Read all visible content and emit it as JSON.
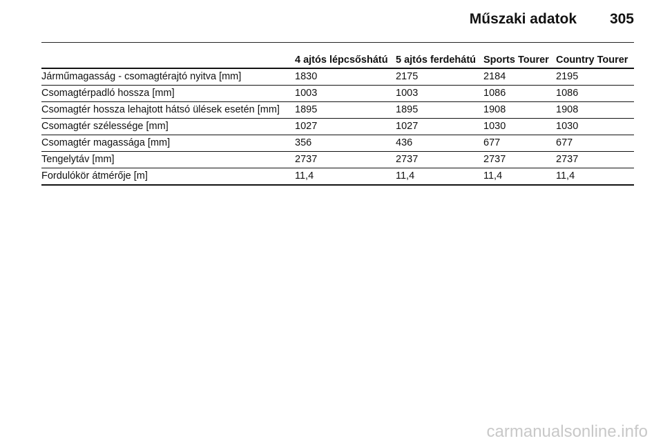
{
  "header": {
    "title": "Műszaki adatok",
    "page": "305"
  },
  "table": {
    "columns": [
      "4 ajtós lépcsőshátú",
      "5 ajtós ferdehátú",
      "Sports Tourer",
      "Country Tourer"
    ],
    "rows": [
      {
        "label": "Járműmagasság - csomagtérajtó nyitva [mm]",
        "values": [
          "1830",
          "2175",
          "2184",
          "2195"
        ]
      },
      {
        "label": "Csomagtérpadló hossza [mm]",
        "values": [
          "1003",
          "1003",
          "1086",
          "1086"
        ]
      },
      {
        "label": "Csomagtér hossza lehajtott hátsó ülések esetén [mm]",
        "values": [
          "1895",
          "1895",
          "1908",
          "1908"
        ]
      },
      {
        "label": "Csomagtér szélessége [mm]",
        "values": [
          "1027",
          "1027",
          "1030",
          "1030"
        ]
      },
      {
        "label": "Csomagtér magassága [mm]",
        "values": [
          "356",
          "436",
          "677",
          "677"
        ]
      },
      {
        "label": "Tengelytáv [mm]",
        "values": [
          "2737",
          "2737",
          "2737",
          "2737"
        ]
      },
      {
        "label": "Fordulókör átmérője [m]",
        "values": [
          "11,4",
          "11,4",
          "11,4",
          "11,4"
        ]
      }
    ]
  },
  "watermark": "carmanualsonline.info"
}
